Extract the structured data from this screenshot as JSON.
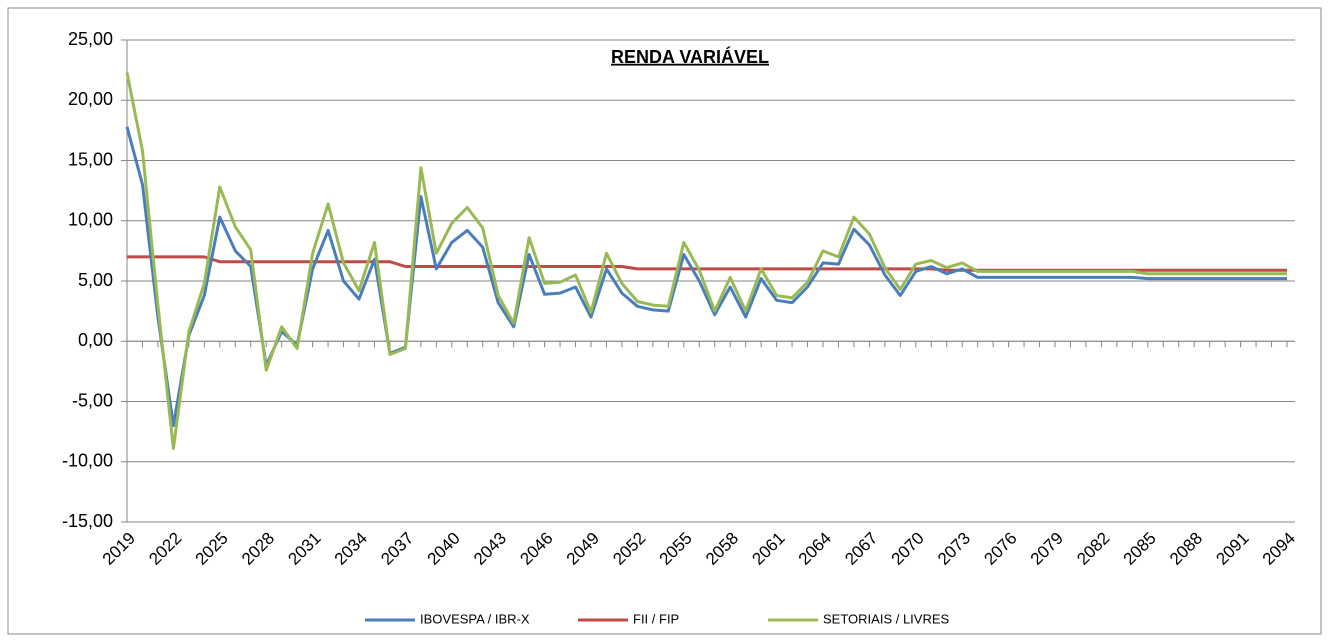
{
  "chart_data": {
    "type": "line",
    "title": "RENDA VARIÁVEL",
    "x": [
      2019,
      2020,
      2021,
      2022,
      2023,
      2024,
      2025,
      2026,
      2027,
      2028,
      2029,
      2030,
      2031,
      2032,
      2033,
      2034,
      2035,
      2036,
      2037,
      2038,
      2039,
      2040,
      2041,
      2042,
      2043,
      2044,
      2045,
      2046,
      2047,
      2048,
      2049,
      2050,
      2051,
      2052,
      2053,
      2054,
      2055,
      2056,
      2057,
      2058,
      2059,
      2060,
      2061,
      2062,
      2063,
      2064,
      2065,
      2066,
      2067,
      2068,
      2069,
      2070,
      2071,
      2072,
      2073,
      2074,
      2075,
      2076,
      2077,
      2078,
      2079,
      2080,
      2081,
      2082,
      2083,
      2084,
      2085,
      2086,
      2087,
      2088,
      2089,
      2090,
      2091,
      2092,
      2093,
      2094
    ],
    "xlim": [
      2019,
      2094
    ],
    "xticks": [
      2019,
      2022,
      2025,
      2028,
      2031,
      2034,
      2037,
      2040,
      2043,
      2046,
      2049,
      2052,
      2055,
      2058,
      2061,
      2064,
      2067,
      2070,
      2073,
      2076,
      2079,
      2082,
      2085,
      2088,
      2091,
      2094
    ],
    "ylim": [
      -15,
      25
    ],
    "yticks": [
      {
        "value": -15,
        "label": "-15,00"
      },
      {
        "value": -10,
        "label": "-10,00"
      },
      {
        "value": -5,
        "label": "-5,00"
      },
      {
        "value": 0,
        "label": "0,00"
      },
      {
        "value": 5,
        "label": "5,00"
      },
      {
        "value": 10,
        "label": "10,00"
      },
      {
        "value": 15,
        "label": "15,00"
      },
      {
        "value": 20,
        "label": "20,00"
      },
      {
        "value": 25,
        "label": "25,00"
      }
    ],
    "grid": true,
    "legend": "bottom",
    "series": [
      {
        "name": "IBOVESPA / IBR-X",
        "color": "#4a7ebb",
        "values": [
          17.8,
          13.0,
          2.0,
          -7.0,
          0.5,
          3.8,
          10.3,
          7.5,
          6.2,
          -2.0,
          0.8,
          -0.3,
          6.0,
          9.2,
          5.0,
          3.5,
          6.8,
          -1.0,
          -0.5,
          12.0,
          6.0,
          8.2,
          9.2,
          7.8,
          3.2,
          1.2,
          7.2,
          3.9,
          4.0,
          4.5,
          2.0,
          6.0,
          4.0,
          2.9,
          2.6,
          2.5,
          7.2,
          5.0,
          2.2,
          4.5,
          2.0,
          5.2,
          3.4,
          3.2,
          4.5,
          6.5,
          6.4,
          9.3,
          8.0,
          5.5,
          3.8,
          5.8,
          6.2,
          5.6,
          6.0,
          5.3,
          5.3,
          5.3,
          5.3,
          5.3,
          5.3,
          5.3,
          5.3,
          5.3,
          5.3,
          5.3,
          5.2,
          5.2,
          5.2,
          5.2,
          5.2,
          5.2,
          5.2,
          5.2,
          5.2,
          5.2
        ]
      },
      {
        "name": "FII / FIP",
        "color": "#be4b48",
        "values": [
          7.0,
          7.0,
          7.0,
          7.0,
          7.0,
          7.0,
          6.6,
          6.6,
          6.6,
          6.6,
          6.6,
          6.6,
          6.6,
          6.6,
          6.6,
          6.6,
          6.6,
          6.6,
          6.2,
          6.2,
          6.2,
          6.2,
          6.2,
          6.2,
          6.2,
          6.2,
          6.2,
          6.2,
          6.2,
          6.2,
          6.2,
          6.2,
          6.2,
          6.0,
          6.0,
          6.0,
          6.0,
          6.0,
          6.0,
          6.0,
          6.0,
          6.0,
          6.0,
          6.0,
          6.0,
          6.0,
          6.0,
          6.0,
          6.0,
          6.0,
          6.0,
          6.0,
          6.0,
          5.9,
          5.9,
          5.9,
          5.9,
          5.9,
          5.9,
          5.9,
          5.9,
          5.9,
          5.9,
          5.9,
          5.9,
          5.9,
          5.9,
          5.9,
          5.9,
          5.9,
          5.9,
          5.9,
          5.9,
          5.9,
          5.9,
          5.9
        ]
      },
      {
        "name": "SETORIAIS / LIVRES",
        "color": "#98b954",
        "values": [
          22.3,
          15.8,
          3.0,
          -8.9,
          0.8,
          4.8,
          12.8,
          9.5,
          7.6,
          -2.4,
          1.2,
          -0.6,
          7.3,
          11.4,
          6.5,
          4.2,
          8.2,
          -1.1,
          -0.6,
          14.4,
          7.3,
          9.8,
          11.1,
          9.4,
          3.8,
          1.5,
          8.6,
          4.8,
          4.9,
          5.5,
          2.4,
          7.3,
          4.8,
          3.3,
          3.0,
          2.9,
          8.2,
          5.9,
          2.5,
          5.3,
          2.5,
          6.0,
          3.8,
          3.6,
          4.9,
          7.5,
          7.0,
          10.3,
          8.9,
          6.1,
          4.3,
          6.4,
          6.7,
          6.1,
          6.5,
          5.8,
          5.8,
          5.8,
          5.8,
          5.8,
          5.8,
          5.8,
          5.8,
          5.8,
          5.8,
          5.8,
          5.6,
          5.6,
          5.6,
          5.6,
          5.6,
          5.6,
          5.6,
          5.6,
          5.6,
          5.6
        ]
      }
    ]
  }
}
